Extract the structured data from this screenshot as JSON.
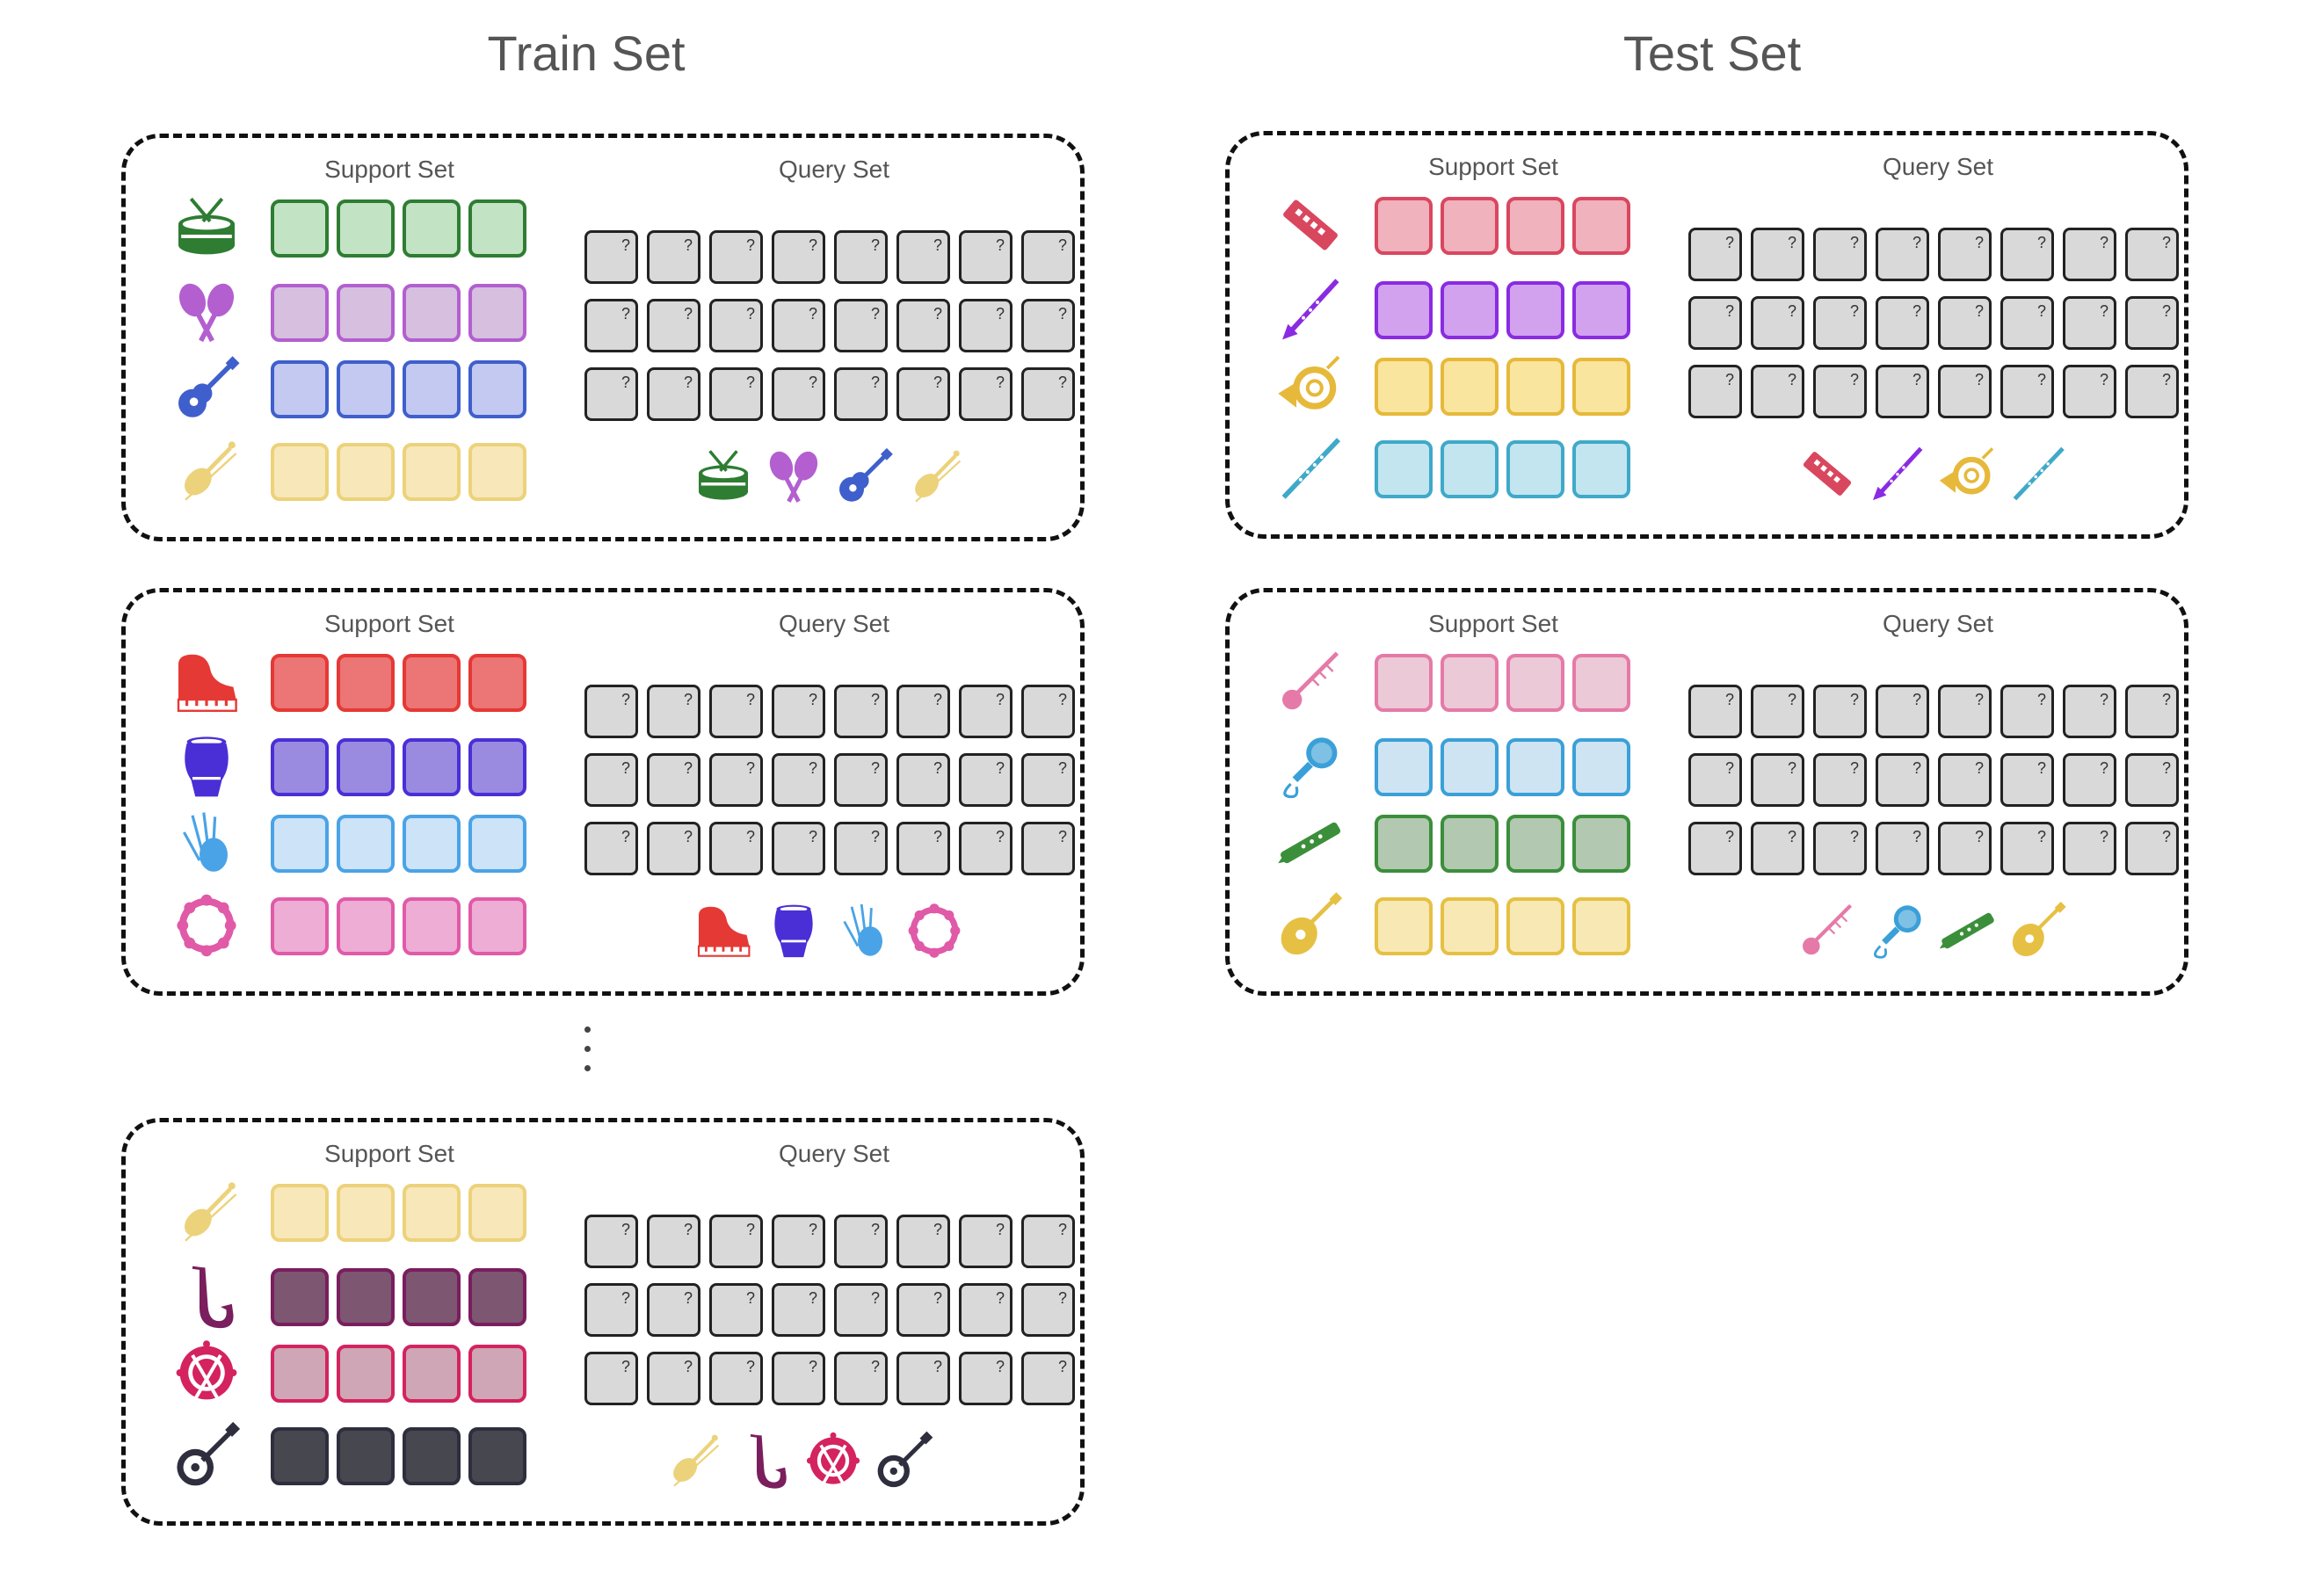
{
  "titles": {
    "train": "Train Set",
    "test": "Test Set"
  },
  "labels": {
    "support": "Support Set",
    "query": "Query Set",
    "cell": "?"
  },
  "panels": [
    {
      "set": "train",
      "items": [
        {
          "icon": "snare-drum-icon",
          "color": "#2e7d32",
          "fill": "#c3e3c5"
        },
        {
          "icon": "maracas-icon",
          "color": "#b35fd0",
          "fill": "#d6bfdf"
        },
        {
          "icon": "acoustic-guitar-icon",
          "color": "#3f5fcc",
          "fill": "#c3c9f0"
        },
        {
          "icon": "violin-icon",
          "color": "#ecd27a",
          "fill": "#f8e7b8"
        }
      ]
    },
    {
      "set": "train",
      "items": [
        {
          "icon": "grand-piano-icon",
          "color": "#e53935",
          "fill": "#ec7575"
        },
        {
          "icon": "conga-drum-icon",
          "color": "#4a2fd6",
          "fill": "#9b8be0"
        },
        {
          "icon": "bagpipes-icon",
          "color": "#4aa3e6",
          "fill": "#cde3f8"
        },
        {
          "icon": "tambourine-icon",
          "color": "#e05aa8",
          "fill": "#eeadd4"
        }
      ]
    },
    {
      "set": "train",
      "items": [
        {
          "icon": "violin-icon",
          "color": "#ecd27a",
          "fill": "#f8e7b8"
        },
        {
          "icon": "saxophone-icon",
          "color": "#7a1e5e",
          "fill": "#7d5672"
        },
        {
          "icon": "bass-drum-icon",
          "color": "#d4235f",
          "fill": "#cfa6b5"
        },
        {
          "icon": "banjo-icon",
          "color": "#2e2e3e",
          "fill": "#474750"
        }
      ]
    },
    {
      "set": "test",
      "items": [
        {
          "icon": "harmonica-icon",
          "color": "#d9475f",
          "fill": "#f0b2bd"
        },
        {
          "icon": "clarinet-icon",
          "color": "#8a2be2",
          "fill": "#d2a2ef"
        },
        {
          "icon": "french-horn-icon",
          "color": "#e6b93a",
          "fill": "#fae59e"
        },
        {
          "icon": "flute-icon",
          "color": "#3fa9c9",
          "fill": "#c3e5ef"
        }
      ]
    },
    {
      "set": "test",
      "items": [
        {
          "icon": "sitar-icon",
          "color": "#e57aa8",
          "fill": "#ecc9d6"
        },
        {
          "icon": "microphone-icon",
          "color": "#3aa0d8",
          "fill": "#cfe4f2"
        },
        {
          "icon": "recorder-icon",
          "color": "#3b8f3b",
          "fill": "#b2c8b0"
        },
        {
          "icon": "mandolin-icon",
          "color": "#e6c043",
          "fill": "#f8e8b4"
        }
      ]
    }
  ]
}
